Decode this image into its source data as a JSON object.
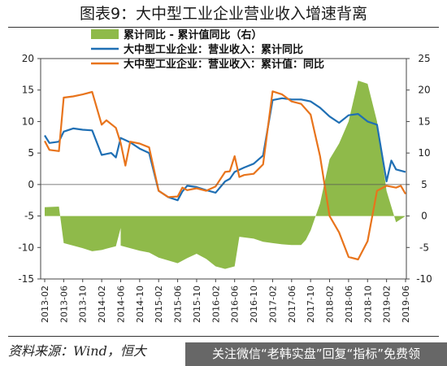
{
  "title": "图表9：大中型工业企业营业收入增速背离",
  "source_note": "资料来源：Wind，恒大",
  "banner_text": "关注微信“老韩实盘”回复“指标”免费领",
  "watermark_text": "",
  "chart_data": {
    "type": "line",
    "title": "图表9：大中型工业企业营业收入增速背离",
    "left_axis": {
      "ylim": [
        -15,
        20
      ],
      "ticks": [
        "-15",
        "-10",
        "-5",
        "0",
        "5",
        "10",
        "15",
        "20"
      ]
    },
    "right_axis": {
      "ylim": [
        -10,
        25
      ],
      "ticks": [
        "-10",
        "-5",
        "0",
        "5",
        "10",
        "15",
        "20",
        "25"
      ]
    },
    "x_ticks": [
      "2013-02",
      "2013-06",
      "2013-10",
      "2014-02",
      "2014-06",
      "2014-10",
      "2015-02",
      "2015-06",
      "2015-10",
      "2016-02",
      "2016-06",
      "2016-10",
      "2017-02",
      "2017-06",
      "2017-10",
      "2018-02",
      "2018-06",
      "2018-10",
      "2019-02",
      "2019-06"
    ],
    "legend_position": "top-center",
    "colors": {
      "area": "#8fba4a",
      "ytd": "#1f6fb4",
      "monthly": "#e8741c"
    },
    "series": [
      {
        "name": "累计同比 - 累计值同比（右）",
        "axis": "right",
        "kind": "area",
        "points": [
          [
            "2013-02",
            1.4
          ],
          [
            "2013-05",
            1.5
          ],
          [
            "2013-06",
            -4.3
          ],
          [
            "2013-08",
            -4.7
          ],
          [
            "2013-10",
            -5.1
          ],
          [
            "2013-12",
            -5.6
          ],
          [
            "2014-02",
            -5.4
          ],
          [
            "2014-03",
            -5.2
          ],
          [
            "2014-05",
            -4.8
          ],
          [
            "2014-06",
            -1.9
          ],
          [
            "2014-06",
            -4.7
          ],
          [
            "2014-10",
            -5.5
          ],
          [
            "2014-12",
            -5.8
          ],
          [
            "2015-02",
            -6.6
          ],
          [
            "2015-06",
            -7.5
          ],
          [
            "2015-08",
            -6.7
          ],
          [
            "2015-10",
            -6.0
          ],
          [
            "2015-12",
            -6.8
          ],
          [
            "2016-02",
            -8.0
          ],
          [
            "2016-04",
            -8.4
          ],
          [
            "2016-06",
            -8.0
          ],
          [
            "2016-07",
            -3.3
          ],
          [
            "2016-10",
            -3.6
          ],
          [
            "2016-12",
            -4.1
          ],
          [
            "2017-02",
            -4.3
          ],
          [
            "2017-04",
            -4.5
          ],
          [
            "2017-06",
            -4.6
          ],
          [
            "2017-08",
            -4.6
          ],
          [
            "2017-09",
            -3.8
          ],
          [
            "2017-10",
            -2.3
          ],
          [
            "2017-12",
            2.0
          ],
          [
            "2018-02",
            9.0
          ],
          [
            "2018-04",
            11.5
          ],
          [
            "2018-06",
            15.0
          ],
          [
            "2018-08",
            21.5
          ],
          [
            "2018-10",
            21.0
          ],
          [
            "2018-12",
            15.0
          ],
          [
            "2019-02",
            4.0
          ],
          [
            "2019-04",
            -1.0
          ],
          [
            "2019-06",
            0.0
          ]
        ]
      },
      {
        "name": "大中型工业企业：营业收入：累计同比",
        "axis": "left",
        "kind": "line",
        "points": [
          [
            "2013-02",
            7.8
          ],
          [
            "2013-03",
            6.6
          ],
          [
            "2013-05",
            6.8
          ],
          [
            "2013-06",
            8.4
          ],
          [
            "2013-08",
            8.9
          ],
          [
            "2013-10",
            8.7
          ],
          [
            "2013-12",
            8.6
          ],
          [
            "2014-02",
            4.7
          ],
          [
            "2014-04",
            5.0
          ],
          [
            "2014-05",
            4.3
          ],
          [
            "2014-06",
            7.4
          ],
          [
            "2014-08",
            6.7
          ],
          [
            "2014-10",
            5.7
          ],
          [
            "2014-12",
            5.0
          ],
          [
            "2015-02",
            -1.0
          ],
          [
            "2015-04",
            -2.0
          ],
          [
            "2015-06",
            -2.5
          ],
          [
            "2015-07",
            -1.1
          ],
          [
            "2015-08",
            -0.2
          ],
          [
            "2015-10",
            -0.4
          ],
          [
            "2015-12",
            -0.9
          ],
          [
            "2016-02",
            -1.3
          ],
          [
            "2016-04",
            0.5
          ],
          [
            "2016-05",
            0.9
          ],
          [
            "2016-06",
            2.0
          ],
          [
            "2016-08",
            2.7
          ],
          [
            "2016-10",
            3.3
          ],
          [
            "2016-12",
            4.6
          ],
          [
            "2017-02",
            13.4
          ],
          [
            "2017-04",
            13.7
          ],
          [
            "2017-06",
            13.5
          ],
          [
            "2017-08",
            13.5
          ],
          [
            "2017-10",
            13.2
          ],
          [
            "2017-12",
            12.2
          ],
          [
            "2018-02",
            10.8
          ],
          [
            "2018-04",
            9.8
          ],
          [
            "2018-06",
            11.0
          ],
          [
            "2018-08",
            11.2
          ],
          [
            "2018-10",
            10.0
          ],
          [
            "2018-12",
            9.5
          ],
          [
            "2019-02",
            0.5
          ],
          [
            "2019-03",
            3.8
          ],
          [
            "2019-04",
            2.4
          ],
          [
            "2019-06",
            2.0
          ]
        ]
      },
      {
        "name": "大中型工业企业：营业收入：累计值：同比",
        "axis": "left",
        "kind": "line",
        "points": [
          [
            "2013-02",
            6.9
          ],
          [
            "2013-03",
            5.5
          ],
          [
            "2013-05",
            5.3
          ],
          [
            "2013-06",
            13.8
          ],
          [
            "2013-08",
            14.0
          ],
          [
            "2013-10",
            14.3
          ],
          [
            "2013-12",
            14.7
          ],
          [
            "2014-02",
            9.5
          ],
          [
            "2014-03",
            10.2
          ],
          [
            "2014-05",
            9.0
          ],
          [
            "2014-06",
            6.6
          ],
          [
            "2014-07",
            3.0
          ],
          [
            "2014-08",
            6.8
          ],
          [
            "2014-10",
            6.5
          ],
          [
            "2014-12",
            5.9
          ],
          [
            "2015-02",
            -1.0
          ],
          [
            "2015-04",
            -2.0
          ],
          [
            "2015-06",
            -1.9
          ],
          [
            "2015-07",
            -0.5
          ],
          [
            "2015-08",
            -0.9
          ],
          [
            "2015-10",
            -0.6
          ],
          [
            "2015-12",
            -1.0
          ],
          [
            "2016-02",
            -0.3
          ],
          [
            "2016-04",
            2.0
          ],
          [
            "2016-05",
            2.1
          ],
          [
            "2016-06",
            4.5
          ],
          [
            "2016-07",
            1.2
          ],
          [
            "2016-08",
            1.5
          ],
          [
            "2016-10",
            1.7
          ],
          [
            "2016-12",
            3.2
          ],
          [
            "2017-02",
            14.8
          ],
          [
            "2017-04",
            14.3
          ],
          [
            "2017-06",
            13.2
          ],
          [
            "2017-08",
            12.8
          ],
          [
            "2017-10",
            11.1
          ],
          [
            "2017-12",
            4.5
          ],
          [
            "2018-02",
            -5.0
          ],
          [
            "2018-04",
            -7.6
          ],
          [
            "2018-06",
            -11.5
          ],
          [
            "2018-08",
            -11.9
          ],
          [
            "2018-10",
            -9.0
          ],
          [
            "2018-12",
            -1.0
          ],
          [
            "2019-02",
            -0.2
          ],
          [
            "2019-04",
            -0.5
          ],
          [
            "2019-05",
            -0.2
          ],
          [
            "2019-06",
            -1.5
          ]
        ]
      }
    ]
  }
}
